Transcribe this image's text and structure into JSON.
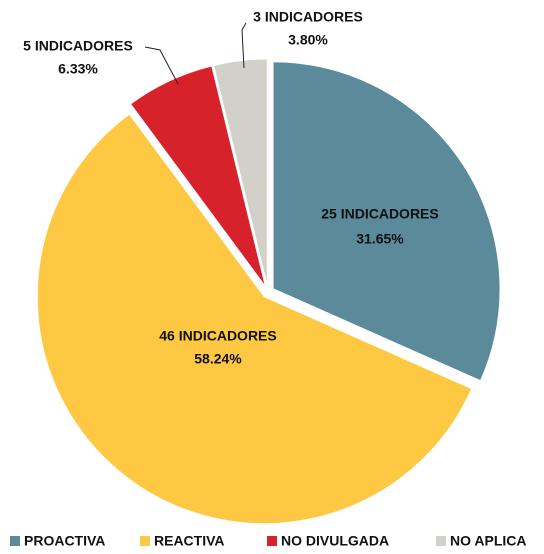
{
  "chart_data": {
    "type": "pie",
    "categories": [
      "PROACTIVA",
      "REACTIVA",
      "NO DIVULGADA",
      "NO APLICA"
    ],
    "values": [
      31.65,
      58.24,
      6.33,
      3.8
    ],
    "value_labels": [
      "31.65%",
      "58.24%",
      "6.33%",
      "3.80%"
    ],
    "count_labels": [
      "25 INDICADORES",
      "46 INDICADORES",
      "5 INDICADORES",
      "3 INDICADORES"
    ],
    "colors": [
      "#5b8a9b",
      "#fec843",
      "#d8222b",
      "#d1d1c9"
    ],
    "legend": "bottom"
  }
}
